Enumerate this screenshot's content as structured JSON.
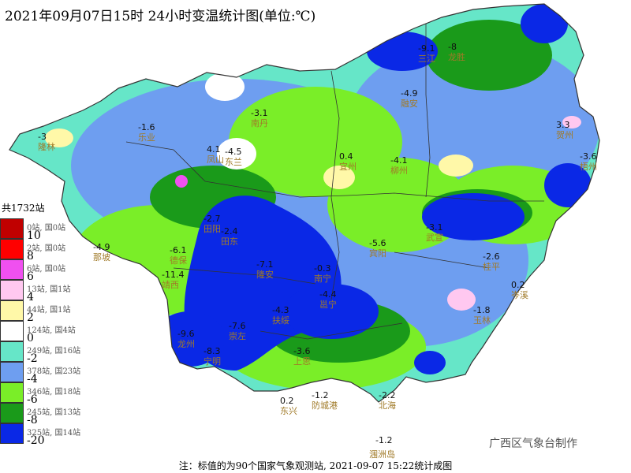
{
  "title": "2021年09月07日15时  24小时变温统计图(单位:℃)",
  "legend": {
    "total": "共1732站",
    "ticks": [
      "10",
      "8",
      "6",
      "4",
      "2",
      "0",
      "-2",
      "-4",
      "-6",
      "-8",
      "-20"
    ],
    "bins": [
      {
        "count": "0站, 国0站",
        "color": "#c00000"
      },
      {
        "count": "2站, 国0站",
        "color": "#ff0000"
      },
      {
        "count": "6站, 国0站",
        "color": "#f050f0"
      },
      {
        "count": "13站, 国1站",
        "color": "#ffc8f0"
      },
      {
        "count": "44站, 国1站",
        "color": "#fff8a8"
      },
      {
        "count": "124站, 国4站",
        "color": "#ffffff"
      },
      {
        "count": "249站, 国16站",
        "color": "#66e6c8"
      },
      {
        "count": "378站, 国23站",
        "color": "#6e9ef0"
      },
      {
        "count": "346站, 国18站",
        "color": "#7aee28"
      },
      {
        "count": "245站, 国13站",
        "color": "#1a9a1a"
      },
      {
        "count": "325站, 国14站",
        "color": "#0a28e6"
      }
    ]
  },
  "colors": {
    "bg": "#ffffff",
    "station_label": "#a07a28",
    "boundary": "#333333"
  },
  "stations": [
    {
      "name": "三江",
      "value": "-9.1"
    },
    {
      "name": "龙胜",
      "value": "-8"
    },
    {
      "name": "融安",
      "value": "-4.9"
    },
    {
      "name": "南丹",
      "value": "-3.1"
    },
    {
      "name": "隆林",
      "value": "-3"
    },
    {
      "name": "乐业",
      "value": "-1.6"
    },
    {
      "name": "凤山",
      "value": "4.1"
    },
    {
      "name": "东兰",
      "value": "-4.5"
    },
    {
      "name": "宜州",
      "value": "0.4"
    },
    {
      "name": "柳州",
      "value": "-4.1"
    },
    {
      "name": "贺州",
      "value": "3.3"
    },
    {
      "name": "梧州",
      "value": "-3.6"
    },
    {
      "name": "那坡",
      "value": "-4.9"
    },
    {
      "name": "田阳",
      "value": "-2.7"
    },
    {
      "name": "田东",
      "value": "-2.4"
    },
    {
      "name": "靖西",
      "value": "-11.4"
    },
    {
      "name": "德保",
      "value": "-6.1"
    },
    {
      "name": "隆安",
      "value": "-7.1"
    },
    {
      "name": "南宁",
      "value": "-0.3"
    },
    {
      "name": "宾阳",
      "value": "-5.6"
    },
    {
      "name": "武宣",
      "value": "-3.1"
    },
    {
      "name": "桂平",
      "value": "-2.6"
    },
    {
      "name": "玉林",
      "value": "-1.8"
    },
    {
      "name": "岑溪",
      "value": "0.2"
    },
    {
      "name": "邕宁",
      "value": "-4.4"
    },
    {
      "name": "扶绥",
      "value": "-4.3"
    },
    {
      "name": "崇左",
      "value": "-7.6"
    },
    {
      "name": "龙州",
      "value": "-9.6"
    },
    {
      "name": "宁明",
      "value": "-8.3"
    },
    {
      "name": "上思",
      "value": "-3.6"
    },
    {
      "name": "东兴",
      "value": "0.2"
    },
    {
      "name": "防城港",
      "value": "-1.2"
    },
    {
      "name": "北海",
      "value": "-2.2"
    },
    {
      "name": "涠洲岛",
      "value": "-1.2"
    }
  ],
  "credit": "广西区气象台制作",
  "footer": "注：标值的为90个国家气象观测站, 2021-09-07 15:22统计成图"
}
